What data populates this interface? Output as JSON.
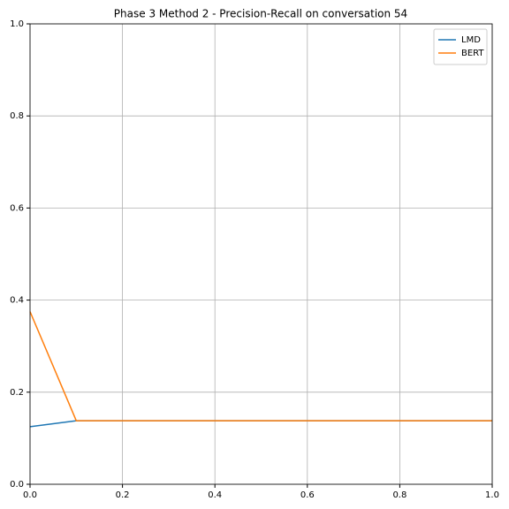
{
  "chart_data": {
    "type": "line",
    "title": "Phase 3 Method 2 - Precision-Recall on conversation 54",
    "x": [
      0,
      0.1,
      1.0
    ],
    "series": [
      {
        "name": "LMD",
        "color": "#1f77b4",
        "values": [
          0.125,
          0.138,
          0.138
        ]
      },
      {
        "name": "BERT",
        "color": "#ff7f0e",
        "values": [
          0.375,
          0.138,
          0.138
        ]
      }
    ],
    "xlim": [
      0,
      1
    ],
    "ylim": [
      0,
      1
    ],
    "xticks": [
      {
        "value": 0,
        "label": "0.0"
      },
      0.2,
      0.4,
      0.6,
      0.8,
      {
        "value": 1,
        "label": "1.0"
      }
    ],
    "yticks": [
      {
        "value": 0,
        "label": "0.0"
      },
      0.2,
      0.4,
      0.6,
      0.8,
      {
        "value": 1,
        "label": "1.0"
      }
    ],
    "grid": true,
    "legend": "upper right"
  }
}
